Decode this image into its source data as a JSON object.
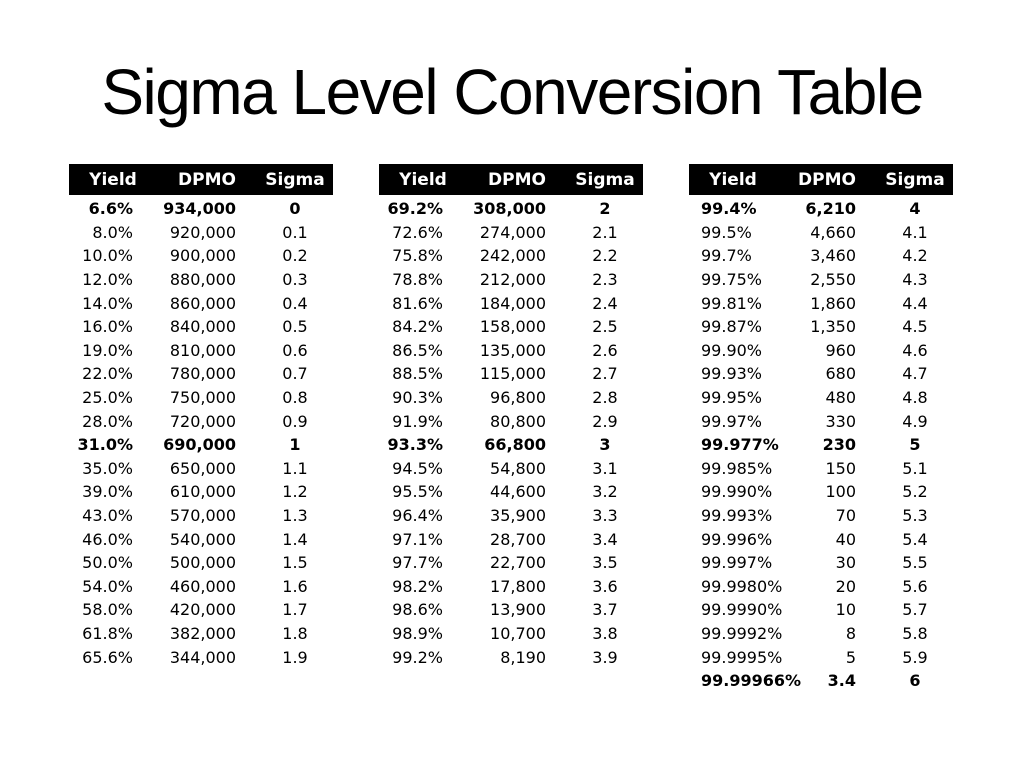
{
  "title": "Sigma Level Conversion Table",
  "columns": [
    "Yield",
    "DPMO",
    "Sigma"
  ],
  "colors": {
    "header_bg": "#000000",
    "header_text": "#ffffff",
    "highlight_bg": "#e8e8e8",
    "text": "#000000"
  },
  "tables": [
    {
      "name": "sigma-0-to-1.9",
      "yield_align": "right",
      "rows": [
        {
          "yield": "6.6%",
          "dpmo": "934,000",
          "sigma": "0",
          "bold": true
        },
        {
          "yield": "8.0%",
          "dpmo": "920,000",
          "sigma": "0.1"
        },
        {
          "yield": "10.0%",
          "dpmo": "900,000",
          "sigma": "0.2"
        },
        {
          "yield": "12.0%",
          "dpmo": "880,000",
          "sigma": "0.3"
        },
        {
          "yield": "14.0%",
          "dpmo": "860,000",
          "sigma": "0.4"
        },
        {
          "yield": "16.0%",
          "dpmo": "840,000",
          "sigma": "0.5"
        },
        {
          "yield": "19.0%",
          "dpmo": "810,000",
          "sigma": "0.6"
        },
        {
          "yield": "22.0%",
          "dpmo": "780,000",
          "sigma": "0.7"
        },
        {
          "yield": "25.0%",
          "dpmo": "750,000",
          "sigma": "0.8"
        },
        {
          "yield": "28.0%",
          "dpmo": "720,000",
          "sigma": "0.9"
        },
        {
          "yield": "31.0%",
          "dpmo": "690,000",
          "sigma": "1",
          "bold": true
        },
        {
          "yield": "35.0%",
          "dpmo": "650,000",
          "sigma": "1.1"
        },
        {
          "yield": "39.0%",
          "dpmo": "610,000",
          "sigma": "1.2"
        },
        {
          "yield": "43.0%",
          "dpmo": "570,000",
          "sigma": "1.3"
        },
        {
          "yield": "46.0%",
          "dpmo": "540,000",
          "sigma": "1.4"
        },
        {
          "yield": "50.0%",
          "dpmo": "500,000",
          "sigma": "1.5"
        },
        {
          "yield": "54.0%",
          "dpmo": "460,000",
          "sigma": "1.6"
        },
        {
          "yield": "58.0%",
          "dpmo": "420,000",
          "sigma": "1.7"
        },
        {
          "yield": "61.8%",
          "dpmo": "382,000",
          "sigma": "1.8"
        },
        {
          "yield": "65.6%",
          "dpmo": "344,000",
          "sigma": "1.9"
        }
      ]
    },
    {
      "name": "sigma-2-to-3.9",
      "yield_align": "right",
      "rows": [
        {
          "yield": "69.2%",
          "dpmo": "308,000",
          "sigma": "2",
          "bold": true
        },
        {
          "yield": "72.6%",
          "dpmo": "274,000",
          "sigma": "2.1"
        },
        {
          "yield": "75.8%",
          "dpmo": "242,000",
          "sigma": "2.2"
        },
        {
          "yield": "78.8%",
          "dpmo": "212,000",
          "sigma": "2.3"
        },
        {
          "yield": "81.6%",
          "dpmo": "184,000",
          "sigma": "2.4"
        },
        {
          "yield": "84.2%",
          "dpmo": "158,000",
          "sigma": "2.5"
        },
        {
          "yield": "86.5%",
          "dpmo": "135,000",
          "sigma": "2.6"
        },
        {
          "yield": "88.5%",
          "dpmo": "115,000",
          "sigma": "2.7"
        },
        {
          "yield": "90.3%",
          "dpmo": "96,800",
          "sigma": "2.8"
        },
        {
          "yield": "91.9%",
          "dpmo": "80,800",
          "sigma": "2.9"
        },
        {
          "yield": "93.3%",
          "dpmo": "66,800",
          "sigma": "3",
          "bold": true
        },
        {
          "yield": "94.5%",
          "dpmo": "54,800",
          "sigma": "3.1"
        },
        {
          "yield": "95.5%",
          "dpmo": "44,600",
          "sigma": "3.2"
        },
        {
          "yield": "96.4%",
          "dpmo": "35,900",
          "sigma": "3.3"
        },
        {
          "yield": "97.1%",
          "dpmo": "28,700",
          "sigma": "3.4"
        },
        {
          "yield": "97.7%",
          "dpmo": "22,700",
          "sigma": "3.5"
        },
        {
          "yield": "98.2%",
          "dpmo": "17,800",
          "sigma": "3.6"
        },
        {
          "yield": "98.6%",
          "dpmo": "13,900",
          "sigma": "3.7"
        },
        {
          "yield": "98.9%",
          "dpmo": "10,700",
          "sigma": "3.8"
        },
        {
          "yield": "99.2%",
          "dpmo": "8,190",
          "sigma": "3.9"
        }
      ]
    },
    {
      "name": "sigma-4-to-6",
      "yield_align": "left",
      "rows": [
        {
          "yield": "99.4%",
          "dpmo": "6,210",
          "sigma": "4",
          "bold": true
        },
        {
          "yield": "99.5%",
          "dpmo": "4,660",
          "sigma": "4.1"
        },
        {
          "yield": "99.7%",
          "dpmo": "3,460",
          "sigma": "4.2"
        },
        {
          "yield": "99.75%",
          "dpmo": "2,550",
          "sigma": "4.3"
        },
        {
          "yield": "99.81%",
          "dpmo": "1,860",
          "sigma": "4.4"
        },
        {
          "yield": "99.87%",
          "dpmo": "1,350",
          "sigma": "4.5"
        },
        {
          "yield": "99.90%",
          "dpmo": "960",
          "sigma": "4.6"
        },
        {
          "yield": "99.93%",
          "dpmo": "680",
          "sigma": "4.7"
        },
        {
          "yield": "99.95%",
          "dpmo": "480",
          "sigma": "4.8"
        },
        {
          "yield": "99.97%",
          "dpmo": "330",
          "sigma": "4.9"
        },
        {
          "yield": "99.977%",
          "dpmo": "230",
          "sigma": "5",
          "bold": true
        },
        {
          "yield": "99.985%",
          "dpmo": "150",
          "sigma": "5.1"
        },
        {
          "yield": "99.990%",
          "dpmo": "100",
          "sigma": "5.2"
        },
        {
          "yield": "99.993%",
          "dpmo": "70",
          "sigma": "5.3"
        },
        {
          "yield": "99.996%",
          "dpmo": "40",
          "sigma": "5.4"
        },
        {
          "yield": "99.997%",
          "dpmo": "30",
          "sigma": "5.5"
        },
        {
          "yield": "99.9980%",
          "dpmo": "20",
          "sigma": "5.6"
        },
        {
          "yield": "99.9990%",
          "dpmo": "10",
          "sigma": "5.7"
        },
        {
          "yield": "99.9992%",
          "dpmo": "8",
          "sigma": "5.8"
        },
        {
          "yield": "99.9995%",
          "dpmo": "5",
          "sigma": "5.9"
        },
        {
          "yield": "99.99966%",
          "dpmo": "3.4",
          "sigma": "6",
          "bold": true,
          "highlight": true
        }
      ]
    }
  ]
}
